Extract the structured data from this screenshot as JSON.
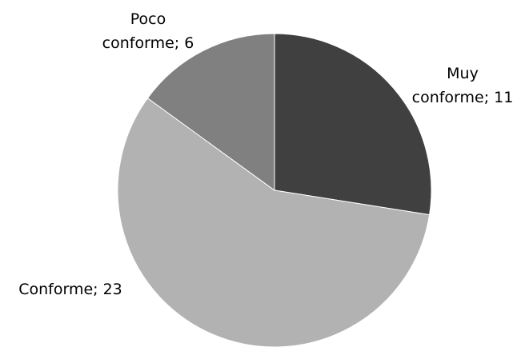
{
  "chart_data": {
    "type": "pie",
    "title": "",
    "slices": [
      {
        "label_lines": [
          "Muy",
          "conforme; 11"
        ],
        "value": 11,
        "color": "#404040"
      },
      {
        "label_lines": [
          "Conforme; 23"
        ],
        "value": 23,
        "color": "#b2b2b2"
      },
      {
        "label_lines": [
          "Poco",
          "conforme; 6"
        ],
        "value": 6,
        "color": "#808080"
      }
    ]
  }
}
